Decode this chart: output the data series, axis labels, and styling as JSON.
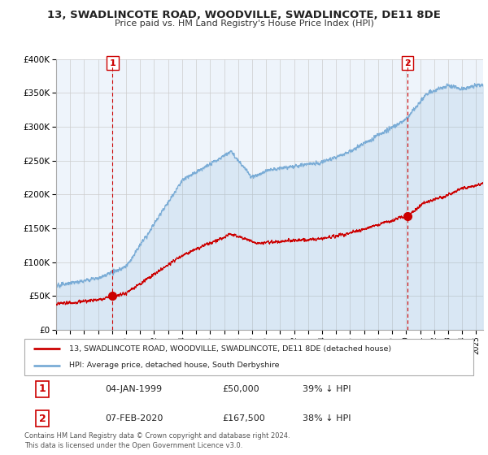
{
  "title": "13, SWADLINCOTE ROAD, WOODVILLE, SWADLINCOTE, DE11 8DE",
  "subtitle": "Price paid vs. HM Land Registry's House Price Index (HPI)",
  "legend_label_red": "13, SWADLINCOTE ROAD, WOODVILLE, SWADLINCOTE, DE11 8DE (detached house)",
  "legend_label_blue": "HPI: Average price, detached house, South Derbyshire",
  "annotation1_date": "04-JAN-1999",
  "annotation1_price": "£50,000",
  "annotation1_hpi": "39% ↓ HPI",
  "annotation2_date": "07-FEB-2020",
  "annotation2_price": "£167,500",
  "annotation2_hpi": "38% ↓ HPI",
  "footer": "Contains HM Land Registry data © Crown copyright and database right 2024.\nThis data is licensed under the Open Government Licence v3.0.",
  "red_color": "#cc0000",
  "blue_color": "#7aacd6",
  "vline_color": "#cc0000",
  "background_color": "#ffffff",
  "grid_color": "#cccccc",
  "fill_color": "#ddeeff",
  "ylim": [
    0,
    400000
  ],
  "yticks": [
    0,
    50000,
    100000,
    150000,
    200000,
    250000,
    300000,
    350000,
    400000
  ],
  "sale1_year": 1999.03,
  "sale1_price": 50000,
  "sale2_year": 2020.1,
  "sale2_price": 167500
}
